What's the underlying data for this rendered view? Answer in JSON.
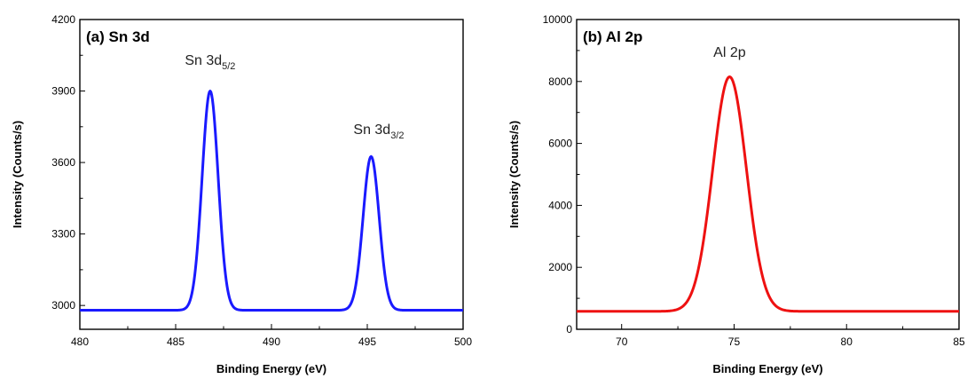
{
  "chart_data": [
    {
      "type": "line",
      "title": "(a) Sn 3d",
      "xlabel": "Binding Energy (eV)",
      "ylabel": "Intensity (Counts/s)",
      "xlim": [
        480,
        500
      ],
      "ylim": [
        2900,
        4200
      ],
      "xticks": [
        480,
        485,
        490,
        495,
        500
      ],
      "yticks": [
        3000,
        3300,
        3600,
        3900,
        4200
      ],
      "grid": false,
      "series": [
        {
          "color": "#1a1aff",
          "baseline": 2980,
          "peaks": [
            {
              "center": 486.8,
              "height": 920,
              "sigma": 0.42
            },
            {
              "center": 495.2,
              "height": 645,
              "sigma": 0.42
            }
          ]
        }
      ],
      "annotations": [
        {
          "text": "Sn 3d",
          "sub": "5/2",
          "x": 486.8,
          "y": 4010
        },
        {
          "text": "Sn 3d",
          "sub": "3/2",
          "x": 495.6,
          "y": 3720
        }
      ]
    },
    {
      "type": "line",
      "title": "(b) Al 2p",
      "xlabel": "Binding Energy (eV)",
      "ylabel": "Intensity (Counts/s)",
      "xlim": [
        68,
        85
      ],
      "ylim": [
        0,
        10000
      ],
      "xticks": [
        70,
        75,
        80,
        85
      ],
      "yticks": [
        0,
        2000,
        4000,
        6000,
        8000,
        10000
      ],
      "grid": false,
      "series": [
        {
          "color": "#ee1111",
          "baseline": 580,
          "peaks": [
            {
              "center": 74.8,
              "height": 7570,
              "sigma": 0.75
            }
          ]
        }
      ],
      "annotations": [
        {
          "text": "Al 2p",
          "sub": "",
          "x": 74.8,
          "y": 8800
        }
      ]
    }
  ]
}
